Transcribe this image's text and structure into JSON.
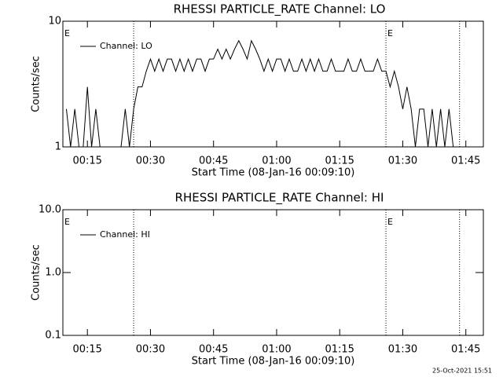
{
  "chart_data": [
    {
      "type": "line",
      "title": "RHESSI PARTICLE_RATE Channel: LO",
      "xlabel": "Start Time (08-Jan-16 00:09:10)",
      "ylabel": "Counts/sec",
      "log_y": true,
      "legend": "upper left",
      "xlim": [
        "00:09:10",
        "01:49:10"
      ],
      "xticks": [
        "00:15",
        "00:30",
        "00:45",
        "01:00",
        "01:15",
        "01:30",
        "01:45"
      ],
      "ylim": [
        1,
        10
      ],
      "yticks": [
        1,
        10
      ],
      "vlines": [
        "00:26",
        "01:26",
        "01:43:30"
      ],
      "annotations": [
        {
          "text": "E",
          "x": "00:09:10"
        },
        {
          "text": "E",
          "x": "01:26"
        }
      ],
      "x": [
        "00:10",
        "00:11",
        "00:12",
        "00:13",
        "00:14",
        "00:15",
        "00:16",
        "00:17",
        "00:18",
        "00:19",
        "00:20",
        "00:21",
        "00:22",
        "00:23",
        "00:24",
        "00:25",
        "00:26",
        "00:27",
        "00:28",
        "00:29",
        "00:30",
        "00:31",
        "00:32",
        "00:33",
        "00:34",
        "00:35",
        "00:36",
        "00:37",
        "00:38",
        "00:39",
        "00:40",
        "00:41",
        "00:42",
        "00:43",
        "00:44",
        "00:45",
        "00:46",
        "00:47",
        "00:48",
        "00:49",
        "00:50",
        "00:51",
        "00:52",
        "00:53",
        "00:54",
        "00:55",
        "00:56",
        "00:57",
        "00:58",
        "00:59",
        "01:00",
        "01:01",
        "01:02",
        "01:03",
        "01:04",
        "01:05",
        "01:06",
        "01:07",
        "01:08",
        "01:09",
        "01:10",
        "01:11",
        "01:12",
        "01:13",
        "01:14",
        "01:15",
        "01:16",
        "01:17",
        "01:18",
        "01:19",
        "01:20",
        "01:21",
        "01:22",
        "01:23",
        "01:24",
        "01:25",
        "01:26",
        "01:27",
        "01:28",
        "01:29",
        "01:30",
        "01:31",
        "01:32",
        "01:33",
        "01:34",
        "01:35",
        "01:36",
        "01:37",
        "01:38",
        "01:39",
        "01:40",
        "01:41",
        "01:42",
        "01:43"
      ],
      "series": [
        {
          "name": "Channel: LO",
          "color": "#000000",
          "values": [
            2,
            1,
            2,
            1,
            1,
            3,
            1,
            2,
            1,
            1,
            1,
            1,
            1,
            1,
            2,
            1,
            2,
            3,
            3,
            4,
            5,
            4,
            5,
            4,
            5,
            5,
            4,
            5,
            4,
            5,
            4,
            5,
            5,
            4,
            5,
            5,
            6,
            5,
            6,
            5,
            6,
            7,
            6,
            5,
            7,
            6,
            5,
            4,
            5,
            4,
            5,
            5,
            4,
            5,
            4,
            4,
            5,
            4,
            5,
            4,
            5,
            4,
            4,
            5,
            4,
            4,
            4,
            5,
            4,
            4,
            5,
            4,
            4,
            4,
            5,
            4,
            4,
            3,
            4,
            3,
            2,
            3,
            2,
            1,
            2,
            2,
            1,
            2,
            1,
            2,
            1,
            2,
            1,
            1
          ]
        }
      ]
    },
    {
      "type": "line",
      "title": "RHESSI PARTICLE_RATE Channel: HI",
      "xlabel": "Start Time (08-Jan-16 00:09:10)",
      "ylabel": "Counts/sec",
      "log_y": true,
      "legend": "upper left",
      "xlim": [
        "00:09:10",
        "01:49:10"
      ],
      "xticks": [
        "00:15",
        "00:30",
        "00:45",
        "01:00",
        "01:15",
        "01:30",
        "01:45"
      ],
      "ylim": [
        0.1,
        10
      ],
      "yticks": [
        0.1,
        {
          "value": 1,
          "label": "1.0"
        },
        {
          "value": 10,
          "label": "10.0"
        }
      ],
      "vlines": [
        "00:26",
        "01:26",
        "01:43:30"
      ],
      "annotations": [
        {
          "text": "E",
          "x": "00:09:10"
        },
        {
          "text": "E",
          "x": "01:26"
        }
      ],
      "x": [],
      "series": [
        {
          "name": "Channel: HI",
          "color": "#000000",
          "values": []
        }
      ]
    }
  ],
  "footer": "25-Oct-2021 15:51"
}
